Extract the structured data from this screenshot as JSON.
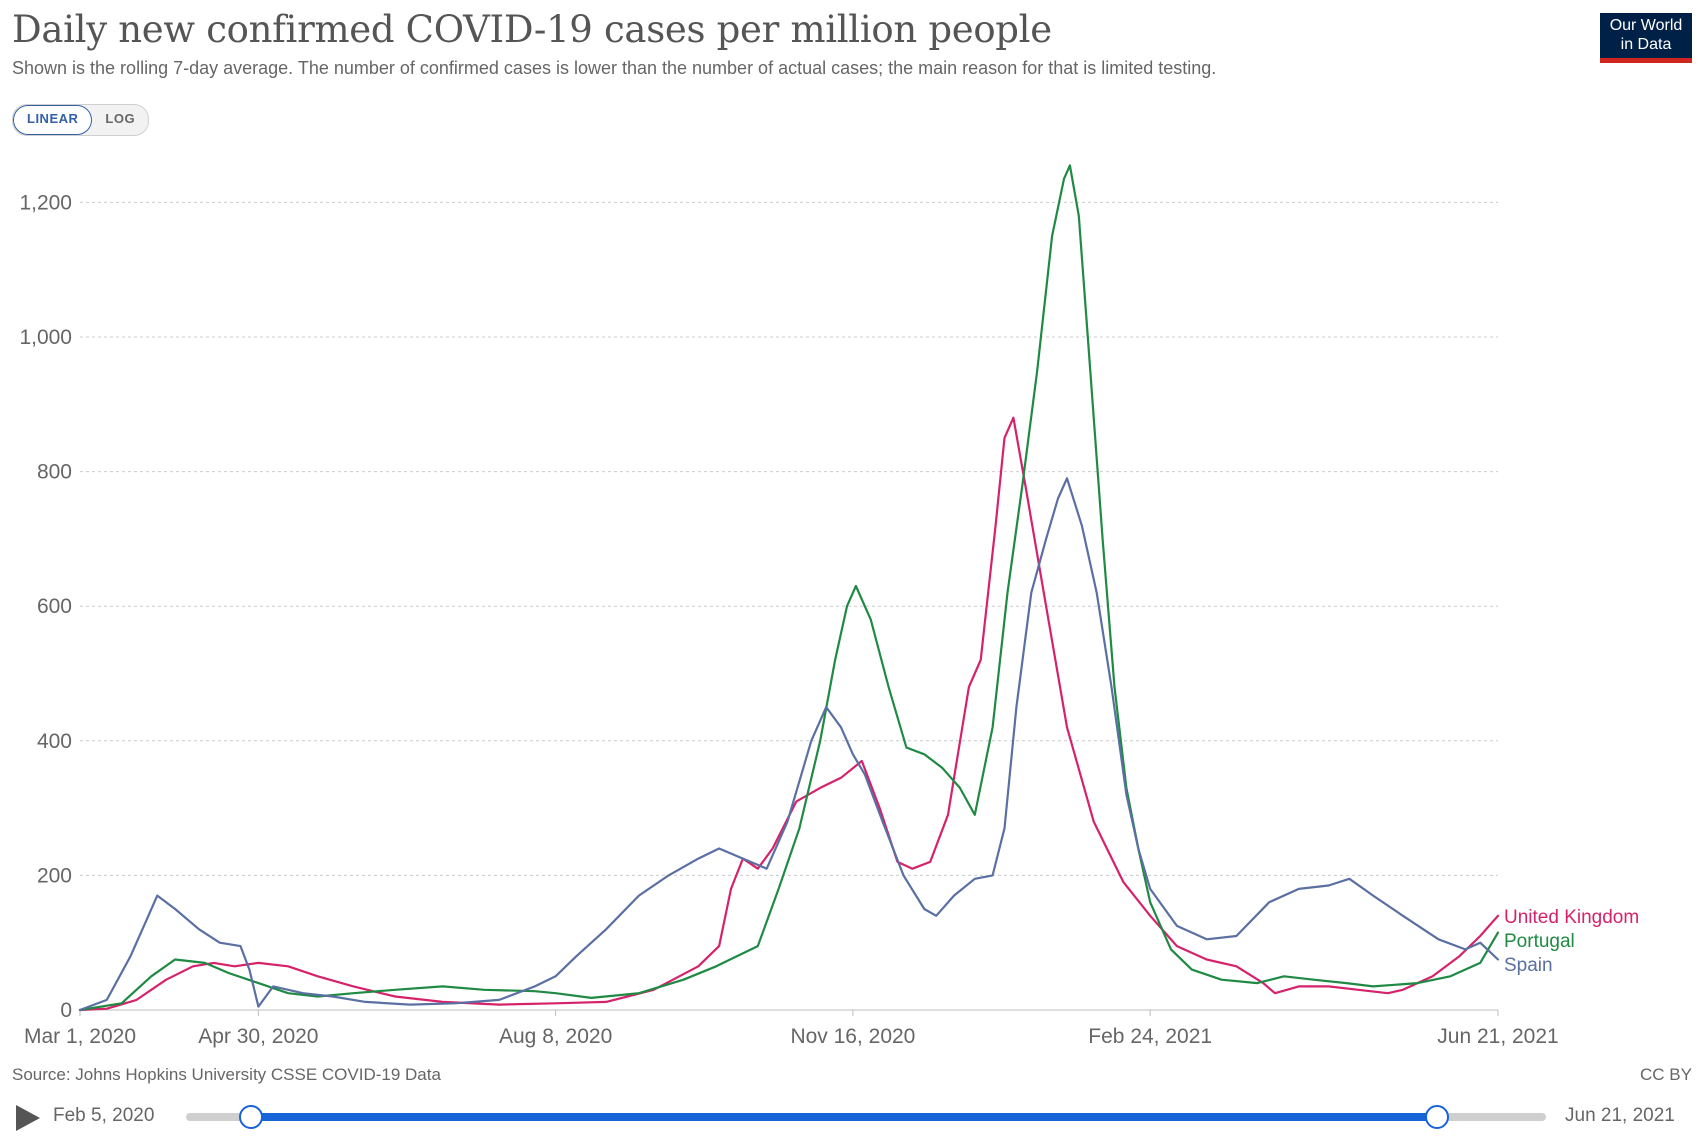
{
  "header": {
    "title": "Daily new confirmed COVID-19 cases per million people",
    "subtitle": "Shown is the rolling 7-day average. The number of confirmed cases is lower than the number of actual cases; the main reason for that is limited testing.",
    "logo_line1": "Our World",
    "logo_line2": "in Data"
  },
  "controls": {
    "linear_label": "LINEAR",
    "log_label": "LOG",
    "active": "LINEAR"
  },
  "footer": {
    "source": "Source: Johns Hopkins University CSSE COVID-19 Data",
    "license": "CC BY"
  },
  "timeline": {
    "start_label": "Feb 5, 2020",
    "end_label": "Jun 21, 2021",
    "range_start_fraction": 0.048,
    "range_end_fraction": 0.92
  },
  "colors": {
    "united_kingdom": "#d6226a",
    "portugal": "#1f8a43",
    "spain": "#5a6fa2",
    "grid": "#cccccc",
    "accent": "#1763d8"
  },
  "chart_data": {
    "type": "line",
    "title": "Daily new confirmed COVID-19 cases per million people",
    "subtitle": "Shown is the rolling 7-day average. The number of confirmed cases is lower than the number of actual cases; the main reason for that is limited testing.",
    "x_range": [
      "2020-03-01",
      "2021-06-21"
    ],
    "ylim": [
      0,
      1260
    ],
    "scale": "linear",
    "grid": "horizontal dashed",
    "legend": "line-end labels, right",
    "x_ticks": [
      {
        "date": "2020-03-01",
        "label": "Mar 1, 2020"
      },
      {
        "date": "2020-04-30",
        "label": "Apr 30, 2020"
      },
      {
        "date": "2020-08-08",
        "label": "Aug 8, 2020"
      },
      {
        "date": "2020-11-16",
        "label": "Nov 16, 2020"
      },
      {
        "date": "2021-02-24",
        "label": "Feb 24, 2021"
      },
      {
        "date": "2021-06-21",
        "label": "Jun 21, 2021"
      }
    ],
    "y_ticks": [
      {
        "value": 0,
        "label": "0"
      },
      {
        "value": 200,
        "label": "200"
      },
      {
        "value": 400,
        "label": "400"
      },
      {
        "value": 600,
        "label": "600"
      },
      {
        "value": 800,
        "label": "800"
      },
      {
        "value": 1000,
        "label": "1,000"
      },
      {
        "value": 1200,
        "label": "1,200"
      }
    ],
    "series": [
      {
        "name": "United Kingdom",
        "color": "#d6226a",
        "points": [
          [
            "2020-03-01",
            0
          ],
          [
            "2020-03-10",
            2
          ],
          [
            "2020-03-20",
            15
          ],
          [
            "2020-03-30",
            45
          ],
          [
            "2020-04-08",
            65
          ],
          [
            "2020-04-15",
            70
          ],
          [
            "2020-04-22",
            65
          ],
          [
            "2020-04-30",
            70
          ],
          [
            "2020-05-10",
            65
          ],
          [
            "2020-05-20",
            50
          ],
          [
            "2020-06-01",
            35
          ],
          [
            "2020-06-15",
            20
          ],
          [
            "2020-07-01",
            12
          ],
          [
            "2020-07-20",
            8
          ],
          [
            "2020-08-08",
            10
          ],
          [
            "2020-08-25",
            12
          ],
          [
            "2020-09-10",
            30
          ],
          [
            "2020-09-25",
            65
          ],
          [
            "2020-10-02",
            95
          ],
          [
            "2020-10-06",
            180
          ],
          [
            "2020-10-10",
            225
          ],
          [
            "2020-10-15",
            210
          ],
          [
            "2020-10-20",
            240
          ],
          [
            "2020-10-28",
            310
          ],
          [
            "2020-11-05",
            330
          ],
          [
            "2020-11-12",
            345
          ],
          [
            "2020-11-19",
            370
          ],
          [
            "2020-11-25",
            300
          ],
          [
            "2020-12-01",
            220
          ],
          [
            "2020-12-06",
            210
          ],
          [
            "2020-12-12",
            220
          ],
          [
            "2020-12-18",
            290
          ],
          [
            "2020-12-25",
            480
          ],
          [
            "2020-12-29",
            520
          ],
          [
            "2021-01-03",
            720
          ],
          [
            "2021-01-06",
            850
          ],
          [
            "2021-01-09",
            880
          ],
          [
            "2021-01-13",
            780
          ],
          [
            "2021-01-20",
            600
          ],
          [
            "2021-01-27",
            420
          ],
          [
            "2021-02-05",
            280
          ],
          [
            "2021-02-15",
            190
          ],
          [
            "2021-02-24",
            140
          ],
          [
            "2021-03-05",
            95
          ],
          [
            "2021-03-15",
            75
          ],
          [
            "2021-03-25",
            65
          ],
          [
            "2021-04-03",
            40
          ],
          [
            "2021-04-07",
            25
          ],
          [
            "2021-04-15",
            35
          ],
          [
            "2021-04-25",
            35
          ],
          [
            "2021-05-05",
            30
          ],
          [
            "2021-05-15",
            25
          ],
          [
            "2021-05-20",
            30
          ],
          [
            "2021-05-30",
            50
          ],
          [
            "2021-06-08",
            80
          ],
          [
            "2021-06-15",
            110
          ],
          [
            "2021-06-21",
            140
          ]
        ]
      },
      {
        "name": "Portugal",
        "color": "#1f8a43",
        "points": [
          [
            "2020-03-01",
            0
          ],
          [
            "2020-03-15",
            10
          ],
          [
            "2020-03-25",
            50
          ],
          [
            "2020-04-02",
            75
          ],
          [
            "2020-04-12",
            70
          ],
          [
            "2020-04-20",
            55
          ],
          [
            "2020-04-30",
            40
          ],
          [
            "2020-05-10",
            25
          ],
          [
            "2020-05-20",
            20
          ],
          [
            "2020-06-01",
            25
          ],
          [
            "2020-06-15",
            30
          ],
          [
            "2020-07-01",
            35
          ],
          [
            "2020-07-15",
            30
          ],
          [
            "2020-08-01",
            28
          ],
          [
            "2020-08-08",
            25
          ],
          [
            "2020-08-20",
            18
          ],
          [
            "2020-09-05",
            25
          ],
          [
            "2020-09-20",
            45
          ],
          [
            "2020-10-01",
            65
          ],
          [
            "2020-10-15",
            95
          ],
          [
            "2020-10-22",
            180
          ],
          [
            "2020-10-29",
            270
          ],
          [
            "2020-11-05",
            400
          ],
          [
            "2020-11-10",
            520
          ],
          [
            "2020-11-14",
            600
          ],
          [
            "2020-11-17",
            630
          ],
          [
            "2020-11-22",
            580
          ],
          [
            "2020-11-28",
            480
          ],
          [
            "2020-12-04",
            390
          ],
          [
            "2020-12-10",
            380
          ],
          [
            "2020-12-16",
            360
          ],
          [
            "2020-12-22",
            330
          ],
          [
            "2020-12-27",
            290
          ],
          [
            "2021-01-02",
            420
          ],
          [
            "2021-01-07",
            620
          ],
          [
            "2021-01-12",
            780
          ],
          [
            "2021-01-17",
            950
          ],
          [
            "2021-01-22",
            1150
          ],
          [
            "2021-01-26",
            1235
          ],
          [
            "2021-01-28",
            1255
          ],
          [
            "2021-01-31",
            1180
          ],
          [
            "2021-02-03",
            1000
          ],
          [
            "2021-02-08",
            700
          ],
          [
            "2021-02-12",
            480
          ],
          [
            "2021-02-16",
            330
          ],
          [
            "2021-02-20",
            240
          ],
          [
            "2021-02-24",
            160
          ],
          [
            "2021-03-03",
            90
          ],
          [
            "2021-03-10",
            60
          ],
          [
            "2021-03-20",
            45
          ],
          [
            "2021-04-01",
            40
          ],
          [
            "2021-04-10",
            50
          ],
          [
            "2021-04-20",
            45
          ],
          [
            "2021-05-01",
            40
          ],
          [
            "2021-05-10",
            35
          ],
          [
            "2021-05-25",
            40
          ],
          [
            "2021-06-05",
            50
          ],
          [
            "2021-06-15",
            70
          ],
          [
            "2021-06-21",
            115
          ]
        ]
      },
      {
        "name": "Spain",
        "color": "#5a6fa2",
        "points": [
          [
            "2020-03-01",
            0
          ],
          [
            "2020-03-10",
            15
          ],
          [
            "2020-03-18",
            80
          ],
          [
            "2020-03-24",
            140
          ],
          [
            "2020-03-27",
            170
          ],
          [
            "2020-04-02",
            150
          ],
          [
            "2020-04-10",
            120
          ],
          [
            "2020-04-17",
            100
          ],
          [
            "2020-04-24",
            95
          ],
          [
            "2020-04-27",
            60
          ],
          [
            "2020-04-30",
            5
          ],
          [
            "2020-05-05",
            35
          ],
          [
            "2020-05-15",
            25
          ],
          [
            "2020-05-25",
            20
          ],
          [
            "2020-06-05",
            12
          ],
          [
            "2020-06-20",
            8
          ],
          [
            "2020-07-05",
            10
          ],
          [
            "2020-07-20",
            15
          ],
          [
            "2020-08-01",
            35
          ],
          [
            "2020-08-08",
            50
          ],
          [
            "2020-08-15",
            80
          ],
          [
            "2020-08-25",
            120
          ],
          [
            "2020-09-05",
            170
          ],
          [
            "2020-09-15",
            200
          ],
          [
            "2020-09-25",
            225
          ],
          [
            "2020-10-02",
            240
          ],
          [
            "2020-10-10",
            225
          ],
          [
            "2020-10-18",
            210
          ],
          [
            "2020-10-25",
            280
          ],
          [
            "2020-11-02",
            400
          ],
          [
            "2020-11-07",
            450
          ],
          [
            "2020-11-12",
            420
          ],
          [
            "2020-11-16",
            380
          ],
          [
            "2020-11-20",
            350
          ],
          [
            "2020-11-26",
            280
          ],
          [
            "2020-12-03",
            200
          ],
          [
            "2020-12-10",
            150
          ],
          [
            "2020-12-14",
            140
          ],
          [
            "2020-12-20",
            170
          ],
          [
            "2020-12-27",
            195
          ],
          [
            "2021-01-02",
            200
          ],
          [
            "2021-01-06",
            270
          ],
          [
            "2021-01-10",
            450
          ],
          [
            "2021-01-15",
            620
          ],
          [
            "2021-01-20",
            700
          ],
          [
            "2021-01-24",
            760
          ],
          [
            "2021-01-27",
            790
          ],
          [
            "2021-02-01",
            720
          ],
          [
            "2021-02-06",
            620
          ],
          [
            "2021-02-11",
            480
          ],
          [
            "2021-02-16",
            320
          ],
          [
            "2021-02-20",
            240
          ],
          [
            "2021-02-24",
            180
          ],
          [
            "2021-03-05",
            125
          ],
          [
            "2021-03-15",
            105
          ],
          [
            "2021-03-25",
            110
          ],
          [
            "2021-04-05",
            160
          ],
          [
            "2021-04-15",
            180
          ],
          [
            "2021-04-25",
            185
          ],
          [
            "2021-05-02",
            195
          ],
          [
            "2021-05-10",
            170
          ],
          [
            "2021-05-20",
            140
          ],
          [
            "2021-06-01",
            105
          ],
          [
            "2021-06-10",
            90
          ],
          [
            "2021-06-15",
            100
          ],
          [
            "2021-06-21",
            75
          ]
        ]
      }
    ]
  }
}
